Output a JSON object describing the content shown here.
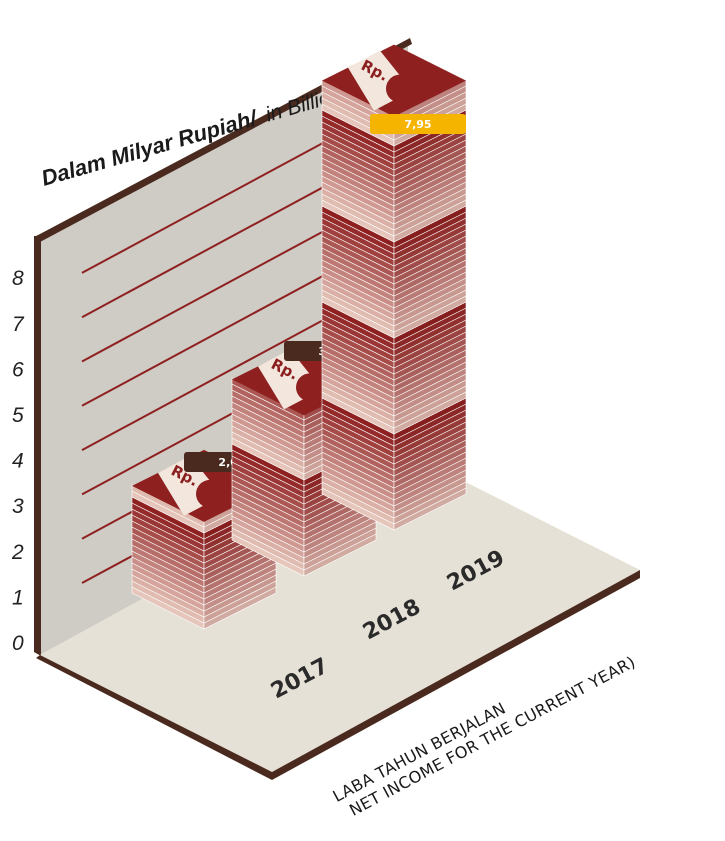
{
  "chart_data": {
    "type": "bar",
    "title": "",
    "ylabel": "Dalam Milyar Rupiah/",
    "ylabel_sub": "in Billion IDR",
    "xlabel": "LABA TAHUN BERJALAN",
    "xlabel_sub": "NET INCOME FOR THE CURRENT YEAR)",
    "categories": [
      "2017",
      "2018",
      "2019"
    ],
    "values": [
      2.06,
      3.09,
      7.95
    ],
    "value_labels": [
      "2,06",
      "3,09",
      "7,95"
    ],
    "yticks": [
      "0",
      "1",
      "2",
      "3",
      "4",
      "5",
      "6",
      "7",
      "8"
    ],
    "ylim": [
      0,
      8
    ],
    "grid": true,
    "bar_icon_text": "Rp.",
    "colors": {
      "bar_dark": "#8e2020",
      "bar_light": "#f0d8cc",
      "wall": "#cfcbc5",
      "floor": "#e6e1d6",
      "frame": "#4a2a1e",
      "gridline": "#8e2020",
      "label_default": "#4a2a1e",
      "label_highlight": "#f4b400"
    }
  }
}
